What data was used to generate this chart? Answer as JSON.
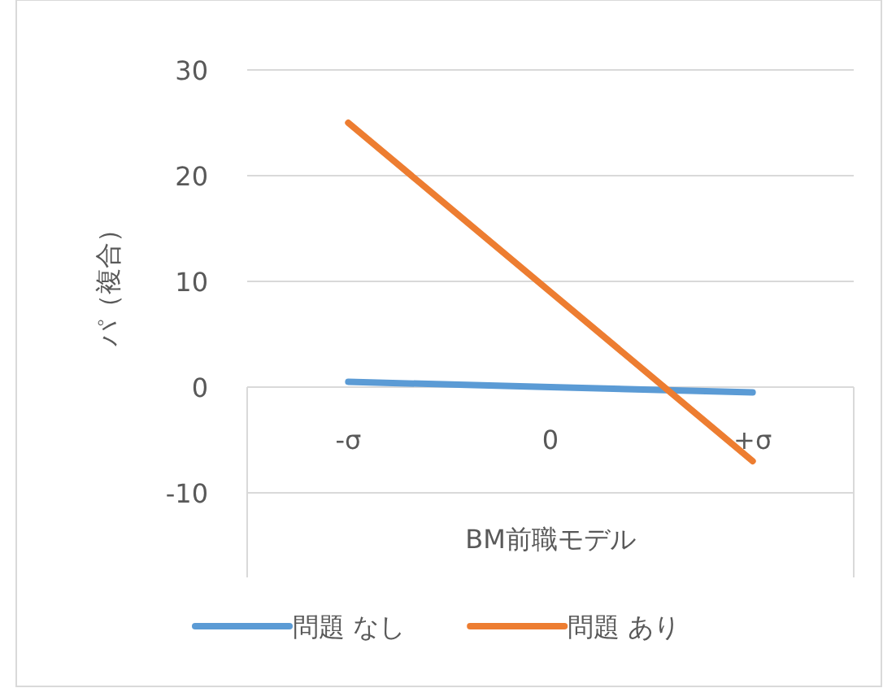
{
  "chart_data": {
    "type": "line",
    "ylabel": "パ（複合）",
    "xlabel": "BM前職モデル",
    "categories": [
      "-σ",
      "0",
      "+σ"
    ],
    "series": [
      {
        "name": "問題 なし",
        "color": "#5b9bd5",
        "values": [
          0.5,
          0,
          -0.5
        ]
      },
      {
        "name": "問題 あり",
        "color": "#ed7d31",
        "values": [
          25,
          9,
          -7
        ]
      }
    ],
    "ylim": [
      -10,
      30
    ],
    "yticks": [
      -10,
      0,
      10,
      20,
      30
    ],
    "grid": "y",
    "legend": "bottom",
    "marker": "none",
    "line_style": "solid"
  }
}
